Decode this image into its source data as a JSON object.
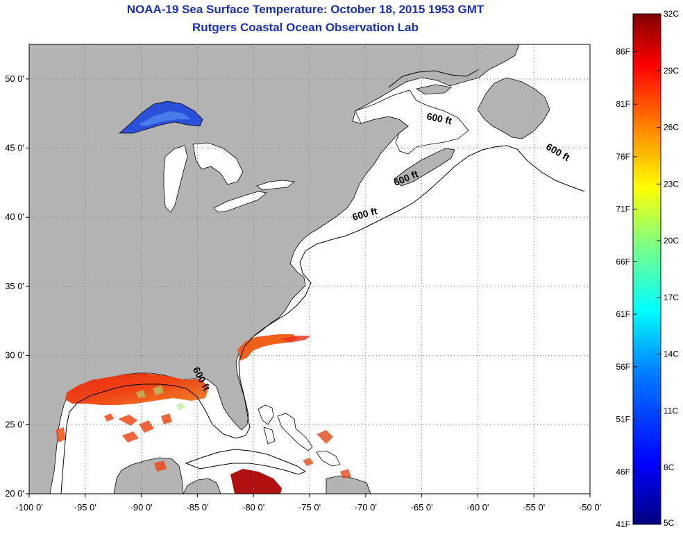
{
  "title": "NOAA-19 Sea Surface Temperature:  October 18, 2015 1953 GMT",
  "subtitle": "Rutgers Coastal Ocean Observation Lab",
  "map": {
    "lon_range": [
      -100,
      -50
    ],
    "lat_range": [
      20,
      52.5
    ],
    "lon_ticks": [
      {
        "lon": -100,
        "label": "-100 0'"
      },
      {
        "lon": -95,
        "label": "-95 0'"
      },
      {
        "lon": -90,
        "label": "-90 0'"
      },
      {
        "lon": -85,
        "label": "-85 0'"
      },
      {
        "lon": -80,
        "label": "-80 0'"
      },
      {
        "lon": -75,
        "label": "-75 0'"
      },
      {
        "lon": -70,
        "label": "-70 0'"
      },
      {
        "lon": -65,
        "label": "-65 0'"
      },
      {
        "lon": -60,
        "label": "-60 0'"
      },
      {
        "lon": -55,
        "label": "-55 0'"
      },
      {
        "lon": -50,
        "label": "-50 0'"
      }
    ],
    "lat_ticks": [
      {
        "lat": 50,
        "label": "50 0'"
      },
      {
        "lat": 45,
        "label": "45 0'"
      },
      {
        "lat": 40,
        "label": "40 0'"
      },
      {
        "lat": 35,
        "label": "35 0'"
      },
      {
        "lat": 30,
        "label": "30 0'"
      },
      {
        "lat": 25,
        "label": "25 0'"
      },
      {
        "lat": 20,
        "label": "20 0'"
      }
    ],
    "contour_label": "600 ft",
    "contour_labels": [
      {
        "lon": -63.5,
        "lat": 46.9,
        "rot": 12
      },
      {
        "lon": -53.0,
        "lat": 44.5,
        "rot": 30
      },
      {
        "lon": -66.3,
        "lat": 42.6,
        "rot": -22
      },
      {
        "lon": -70.0,
        "lat": 40.0,
        "rot": -15
      },
      {
        "lon": -84.9,
        "lat": 28.2,
        "rot": 62
      }
    ],
    "colors": {
      "land": "#b3b3b3",
      "ocean": "#ffffff",
      "grid": "#777777",
      "coast": "#000000"
    }
  },
  "colorbar": {
    "celsius_labels": [
      "32C",
      "29C",
      "26C",
      "23C",
      "20C",
      "17C",
      "14C",
      "11C",
      "8C",
      "5C"
    ],
    "fahrenheit_labels": [
      "86F",
      "81F",
      "76F",
      "71F",
      "66F",
      "61F",
      "56F",
      "51F",
      "46F",
      "41F"
    ],
    "range_c": [
      5,
      32
    ],
    "colors_bottom_to_top": [
      "#00007f",
      "#0000ff",
      "#0080ff",
      "#00ffff",
      "#80ff80",
      "#ffff00",
      "#ff8000",
      "#ff0000",
      "#7f0000"
    ]
  }
}
